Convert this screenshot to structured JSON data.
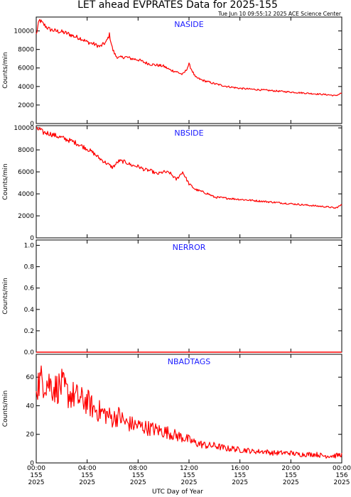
{
  "title": "LET ahead EVPRATES Data for 2025-155",
  "timestamp": "Tue Jun 10 09:55:12 2025 ACE Science Center",
  "xlabel": "UTC Day of Year",
  "series_color": "#ff0000",
  "label_color": "#1a1aff",
  "x_ticks": [
    {
      "hour": 0,
      "time": "00:00",
      "doy": "155",
      "year": "2025"
    },
    {
      "hour": 4,
      "time": "04:00",
      "doy": "155",
      "year": "2025"
    },
    {
      "hour": 8,
      "time": "08:00",
      "doy": "155",
      "year": "2025"
    },
    {
      "hour": 12,
      "time": "12:00",
      "doy": "155",
      "year": "2025"
    },
    {
      "hour": 16,
      "time": "16:00",
      "doy": "155",
      "year": "2025"
    },
    {
      "hour": 20,
      "time": "20:00",
      "doy": "155",
      "year": "2025"
    },
    {
      "hour": 24,
      "time": "00:00",
      "doy": "156",
      "year": "2025"
    }
  ],
  "chart_data": [
    {
      "type": "line",
      "name": "NASIDE",
      "ylabel": "Counts/min",
      "xlim": [
        0,
        24
      ],
      "ylim": [
        0,
        11500
      ],
      "yticks": [
        0,
        2000,
        4000,
        6000,
        8000,
        10000
      ],
      "x": [
        0,
        0.25,
        0.5,
        0.75,
        1,
        1.5,
        2,
        2.5,
        3,
        3.5,
        4,
        4.5,
        5,
        5.5,
        5.75,
        6,
        6.25,
        6.5,
        7,
        7.5,
        8,
        8.5,
        9,
        9.5,
        10,
        10.5,
        11,
        11.5,
        11.75,
        12,
        12.5,
        13,
        13.5,
        14,
        15,
        16,
        17,
        18,
        19,
        20,
        21,
        22,
        23,
        23.5,
        24
      ],
      "values": [
        9600,
        11200,
        10800,
        10500,
        10200,
        10000,
        9900,
        9700,
        9400,
        9200,
        8800,
        8600,
        8300,
        8800,
        9600,
        8000,
        7300,
        7100,
        7200,
        7000,
        6900,
        6600,
        6400,
        6300,
        6200,
        5800,
        5600,
        5300,
        5700,
        6400,
        5000,
        4700,
        4500,
        4300,
        4000,
        3800,
        3700,
        3600,
        3500,
        3400,
        3300,
        3200,
        3100,
        3000,
        3300
      ]
    },
    {
      "type": "line",
      "name": "NBSIDE",
      "ylabel": "Counts/min",
      "xlim": [
        0,
        24
      ],
      "ylim": [
        0,
        10200
      ],
      "yticks": [
        0,
        2000,
        4000,
        6000,
        8000,
        10000
      ],
      "x": [
        0,
        0.25,
        0.5,
        1,
        1.5,
        2,
        2.5,
        3,
        3.5,
        4,
        4.5,
        5,
        5.5,
        6,
        6.5,
        7,
        7.5,
        8,
        8.5,
        9,
        9.5,
        10,
        10.5,
        11,
        11.5,
        12,
        12.5,
        13,
        13.5,
        14,
        15,
        16,
        17,
        18,
        19,
        20,
        21,
        22,
        23,
        23.5,
        24
      ],
      "values": [
        9800,
        9900,
        9600,
        9500,
        9300,
        9100,
        8900,
        8700,
        8400,
        8100,
        7700,
        7200,
        6800,
        6400,
        7000,
        6900,
        6600,
        6500,
        6200,
        6100,
        5800,
        6000,
        5900,
        5300,
        6000,
        4900,
        4400,
        4200,
        4000,
        3700,
        3600,
        3500,
        3400,
        3300,
        3200,
        3100,
        3000,
        2900,
        2800,
        2700,
        3000
      ]
    },
    {
      "type": "line",
      "name": "NERROR",
      "ylabel": "Counts/min",
      "xlim": [
        0,
        24
      ],
      "ylim": [
        0,
        1.05
      ],
      "yticks": [
        0.0,
        0.2,
        0.4,
        0.6,
        0.8,
        1.0
      ],
      "ytick_labels": [
        "0.0",
        "0.2",
        "0.4",
        "0.6",
        "0.8",
        "1.0"
      ],
      "x": [
        0,
        24
      ],
      "values": [
        0,
        0
      ]
    },
    {
      "type": "line",
      "name": "NBADTAGS",
      "ylabel": "Counts/min",
      "xlim": [
        0,
        24
      ],
      "ylim": [
        0,
        76
      ],
      "yticks": [
        0,
        20,
        40,
        60
      ],
      "x": [
        0,
        0.5,
        1,
        1.5,
        2,
        2.5,
        3,
        3.5,
        4,
        4.5,
        5,
        5.5,
        6,
        6.5,
        7,
        7.5,
        8,
        8.5,
        9,
        9.5,
        10,
        10.5,
        11,
        11.5,
        12,
        12.5,
        13,
        13.5,
        14,
        14.5,
        15,
        15.5,
        16,
        16.5,
        17,
        17.5,
        18,
        18.5,
        19,
        19.5,
        20,
        20.5,
        21,
        21.5,
        22,
        22.5,
        23,
        23.5,
        24
      ],
      "values": [
        55,
        58,
        56,
        52,
        54,
        48,
        47,
        44,
        43,
        38,
        36,
        34,
        31,
        33,
        28,
        27,
        26,
        25,
        24,
        23,
        22,
        21,
        19,
        18,
        16,
        14,
        13,
        12,
        12,
        11,
        10,
        10,
        9,
        9,
        8,
        8,
        8,
        7,
        7,
        7,
        7,
        6,
        6,
        6,
        6,
        5,
        5,
        5,
        6
      ]
    }
  ]
}
